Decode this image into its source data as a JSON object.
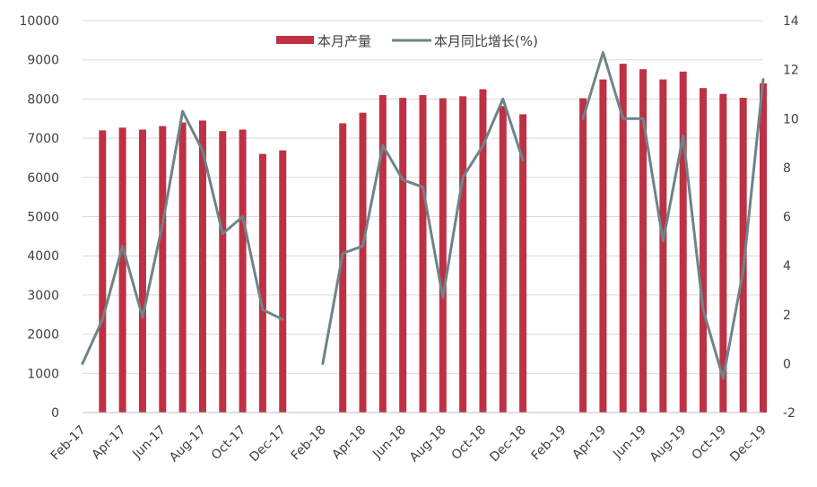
{
  "chart_data": {
    "type": "bar",
    "categories": [
      "Feb-17",
      "Mar-17",
      "Apr-17",
      "May-17",
      "Jun-17",
      "Jul-17",
      "Aug-17",
      "Sep-17",
      "Oct-17",
      "Nov-17",
      "Dec-17",
      "Jan-18",
      "Feb-18",
      "Mar-18",
      "Apr-18",
      "May-18",
      "Jun-18",
      "Jul-18",
      "Aug-18",
      "Sep-18",
      "Oct-18",
      "Nov-18",
      "Dec-18",
      "Jan-19",
      "Feb-19",
      "Mar-19",
      "Apr-19",
      "May-19",
      "Jun-19",
      "Jul-19",
      "Aug-19",
      "Sep-19",
      "Oct-19",
      "Nov-19",
      "Dec-19"
    ],
    "x_tick_labels": [
      "Feb-17",
      "Apr-17",
      "Jun-17",
      "Aug-17",
      "Oct-17",
      "Dec-17",
      "Feb-18",
      "Apr-18",
      "Jun-18",
      "Aug-18",
      "Oct-18",
      "Dec-18",
      "Feb-19",
      "Apr-19",
      "Jun-19",
      "Aug-19",
      "Oct-19",
      "Dec-19"
    ],
    "series": [
      {
        "name": "本月产量",
        "type": "bar",
        "axis": "left",
        "color": "#BE3144",
        "values": [
          null,
          7200,
          7270,
          7220,
          7310,
          7400,
          7450,
          7180,
          7220,
          6600,
          6690,
          null,
          null,
          7380,
          7650,
          8100,
          8030,
          8100,
          8020,
          8070,
          8250,
          7820,
          7610,
          null,
          null,
          8020,
          8500,
          8900,
          8760,
          8500,
          8700,
          8280,
          8130,
          8030,
          8400
        ]
      },
      {
        "name": "本月同比增长(%)",
        "type": "line",
        "axis": "right",
        "color": "#6E8488",
        "values": [
          0.0,
          1.8,
          4.8,
          1.9,
          5.7,
          10.3,
          8.7,
          5.3,
          6.0,
          2.2,
          1.8,
          null,
          0.0,
          4.5,
          4.8,
          8.9,
          7.5,
          7.2,
          2.7,
          7.6,
          8.9,
          10.8,
          8.3,
          null,
          null,
          10.0,
          12.7,
          10.0,
          10.0,
          5.0,
          9.3,
          2.2,
          -0.6,
          3.8,
          11.6
        ]
      }
    ],
    "y_left": {
      "min": 0,
      "max": 10000,
      "ticks": [
        0,
        1000,
        2000,
        3000,
        4000,
        5000,
        6000,
        7000,
        8000,
        9000,
        10000
      ]
    },
    "y_right": {
      "min": -2,
      "max": 14,
      "ticks": [
        -2,
        0,
        2,
        4,
        6,
        8,
        10,
        12,
        14
      ]
    },
    "legend": {
      "placement": "top-center"
    },
    "grid": true
  }
}
